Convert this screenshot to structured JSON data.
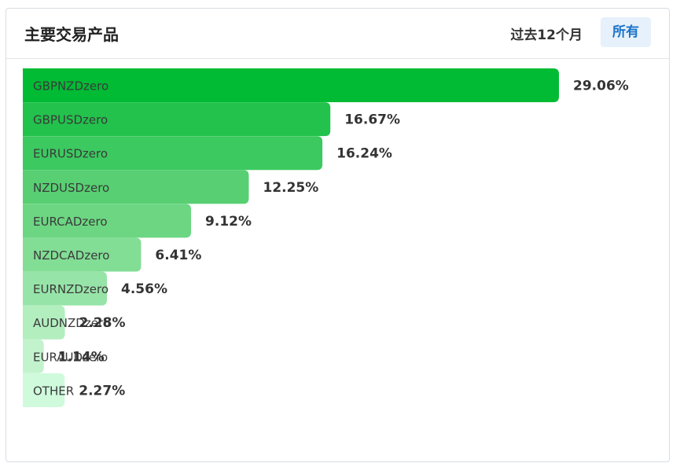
{
  "header": {
    "title": "主要交易产品",
    "period": "过去12个月",
    "filter_label": "所有"
  },
  "chart_data": {
    "type": "bar",
    "orientation": "horizontal",
    "categories": [
      "GBPNZDzero",
      "GBPUSDzero",
      "EURUSDzero",
      "NZDUSDzero",
      "EURCADzero",
      "NZDCADzero",
      "EURNZDzero",
      "AUDNZDzero",
      "EURAUDzero",
      "OTHER"
    ],
    "values": [
      29.06,
      16.67,
      16.24,
      12.25,
      9.12,
      6.41,
      4.56,
      2.28,
      1.14,
      2.27
    ],
    "value_labels": [
      "29.06%",
      "16.67%",
      "16.24%",
      "12.25%",
      "9.12%",
      "6.41%",
      "4.56%",
      "2.28%",
      "1.14%",
      "2.27%"
    ],
    "unit": "%",
    "colors": [
      "#00bb33",
      "#22c24c",
      "#3cc960",
      "#57cf72",
      "#6cd682",
      "#82dd95",
      "#97e4a8",
      "#b3eebf",
      "#c3f3cd",
      "#cffadc"
    ]
  }
}
